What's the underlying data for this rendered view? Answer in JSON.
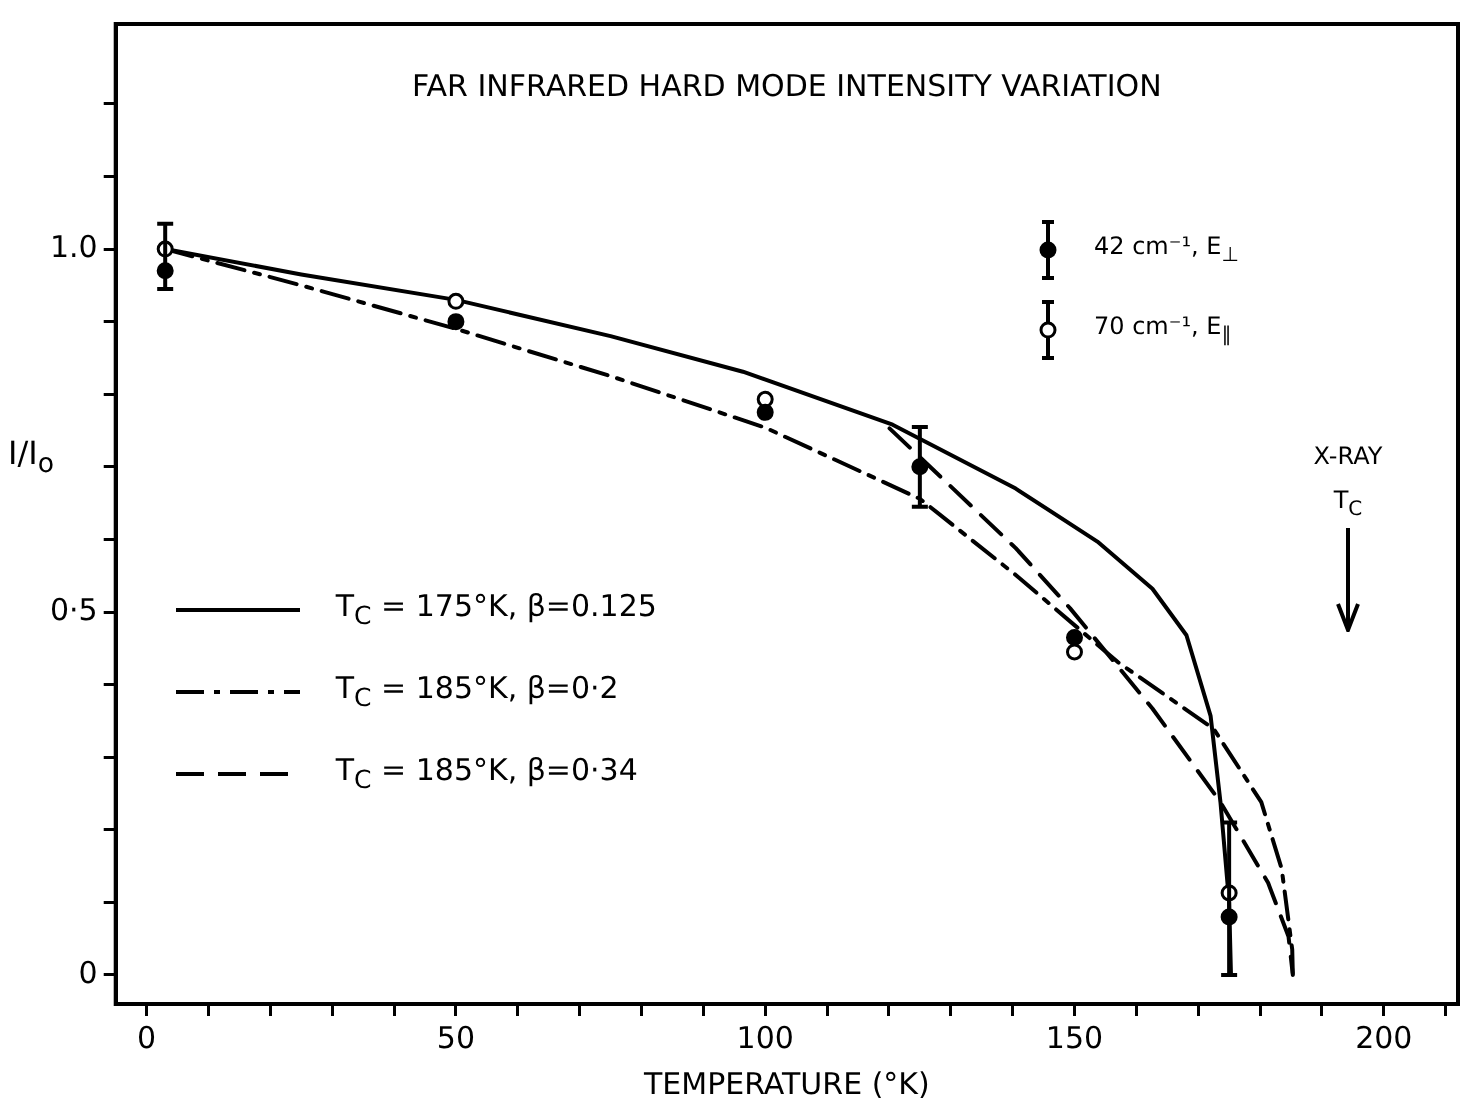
{
  "chart_data": {
    "type": "scatter",
    "title": "FAR INFRARED HARD MODE INTENSITY VARIATION",
    "xlabel": "TEMPERATURE (°K)",
    "ylabel": "I/I$_{o}$",
    "xlim": [
      -5,
      212
    ],
    "ylim": [
      -0.04,
      1.31
    ],
    "xticks": [
      0,
      {
        "value": 10,
        "label": null
      },
      {
        "value": 20,
        "label": null
      },
      {
        "value": 30,
        "label": null
      },
      {
        "value": 40,
        "label": null
      },
      50,
      {
        "value": 60,
        "label": null
      },
      {
        "value": 70,
        "label": null
      },
      {
        "value": 80,
        "label": null
      },
      {
        "value": 90,
        "label": null
      },
      100,
      {
        "value": 110,
        "label": null
      },
      {
        "value": 120,
        "label": null
      },
      {
        "value": 130,
        "label": null
      },
      {
        "value": 140,
        "label": null
      },
      150,
      {
        "value": 160,
        "label": null
      },
      {
        "value": 170,
        "label": null
      },
      {
        "value": 180,
        "label": null
      },
      {
        "value": 190,
        "label": null
      },
      200,
      {
        "value": 210,
        "label": null
      }
    ],
    "yticks": [
      0,
      {
        "value": 0.1,
        "label": null
      },
      {
        "value": 0.2,
        "label": null
      },
      {
        "value": 0.3,
        "label": null
      },
      {
        "value": 0.4,
        "label": null
      },
      {
        "value": 0.5,
        "label": "0·5"
      },
      {
        "value": 0.6,
        "label": null
      },
      {
        "value": 0.7,
        "label": null
      },
      {
        "value": 0.8,
        "label": null
      },
      {
        "value": 0.9,
        "label": null
      },
      {
        "value": 1,
        "label": "1.0"
      },
      {
        "value": 1.1,
        "label": null
      },
      {
        "value": 1.2,
        "label": null
      }
    ],
    "grid": false,
    "legend": "left",
    "series": [
      {
        "name": "42 cm⁻¹, E$_{⊥}$",
        "type": "scatter",
        "marker": "circle",
        "color": "#000000",
        "x": [
          3,
          50,
          100,
          125,
          150,
          175
        ],
        "values": [
          0.97,
          0.9,
          0.775,
          0.7,
          0.465,
          0.08
        ],
        "errors": [
          [
            0.945,
            1.035
          ],
          null,
          null,
          [
            0.645,
            0.755
          ],
          null,
          [
            0,
            0.21
          ]
        ]
      },
      {
        "name": "70 cm⁻¹, E$_{∥}$",
        "type": "scatter",
        "marker": "circle",
        "color": "#000000",
        "x": [
          3,
          50,
          100,
          150,
          175
        ],
        "values": [
          1.0,
          0.928,
          0.793,
          0.445,
          0.113
        ]
      },
      {
        "name": "T$_{C}$ = 175°K,  β=0.125",
        "type": "line",
        "marker": "none",
        "line_style": "solid",
        "color": "#000000",
        "x": [
          3,
          25,
          50,
          75,
          96.4,
          120.6,
          140.5,
          153.7,
          162.6,
          168.1,
          172,
          173.6,
          175,
          175.3
        ],
        "values": [
          1.0,
          0.965,
          0.93,
          0.88,
          0.831,
          0.758,
          0.67,
          0.597,
          0.532,
          0.468,
          0.357,
          0.238,
          0.1,
          0
        ]
      },
      {
        "name": "T$_{C}$ = 185°K,  β=0·2",
        "type": "line",
        "marker": "none",
        "line_style": "dashdot",
        "color": "#000000",
        "x": [
          3,
          25,
          50,
          75,
          100,
          125,
          140.5,
          157,
          172.5,
          180.2,
          183.5,
          185.2,
          185.3
        ],
        "values": [
          1.0,
          0.95,
          0.89,
          0.825,
          0.754,
          0.656,
          0.551,
          0.431,
          0.339,
          0.238,
          0.146,
          0.035,
          0
        ]
      },
      {
        "name": "T$_{C}$  = 185°K,  β=0·34",
        "type": "line",
        "marker": "none",
        "line_style": "dashed",
        "color": "#000000",
        "x": [
          120.1,
          140.5,
          149.3,
          162.6,
          173.6,
          181.3,
          184.6,
          185.3
        ],
        "values": [
          0.753,
          0.588,
          0.505,
          0.367,
          0.238,
          0.127,
          0.053,
          0
        ]
      }
    ],
    "annotations": [
      "X-RAY",
      "T$_{C}$"
    ]
  }
}
